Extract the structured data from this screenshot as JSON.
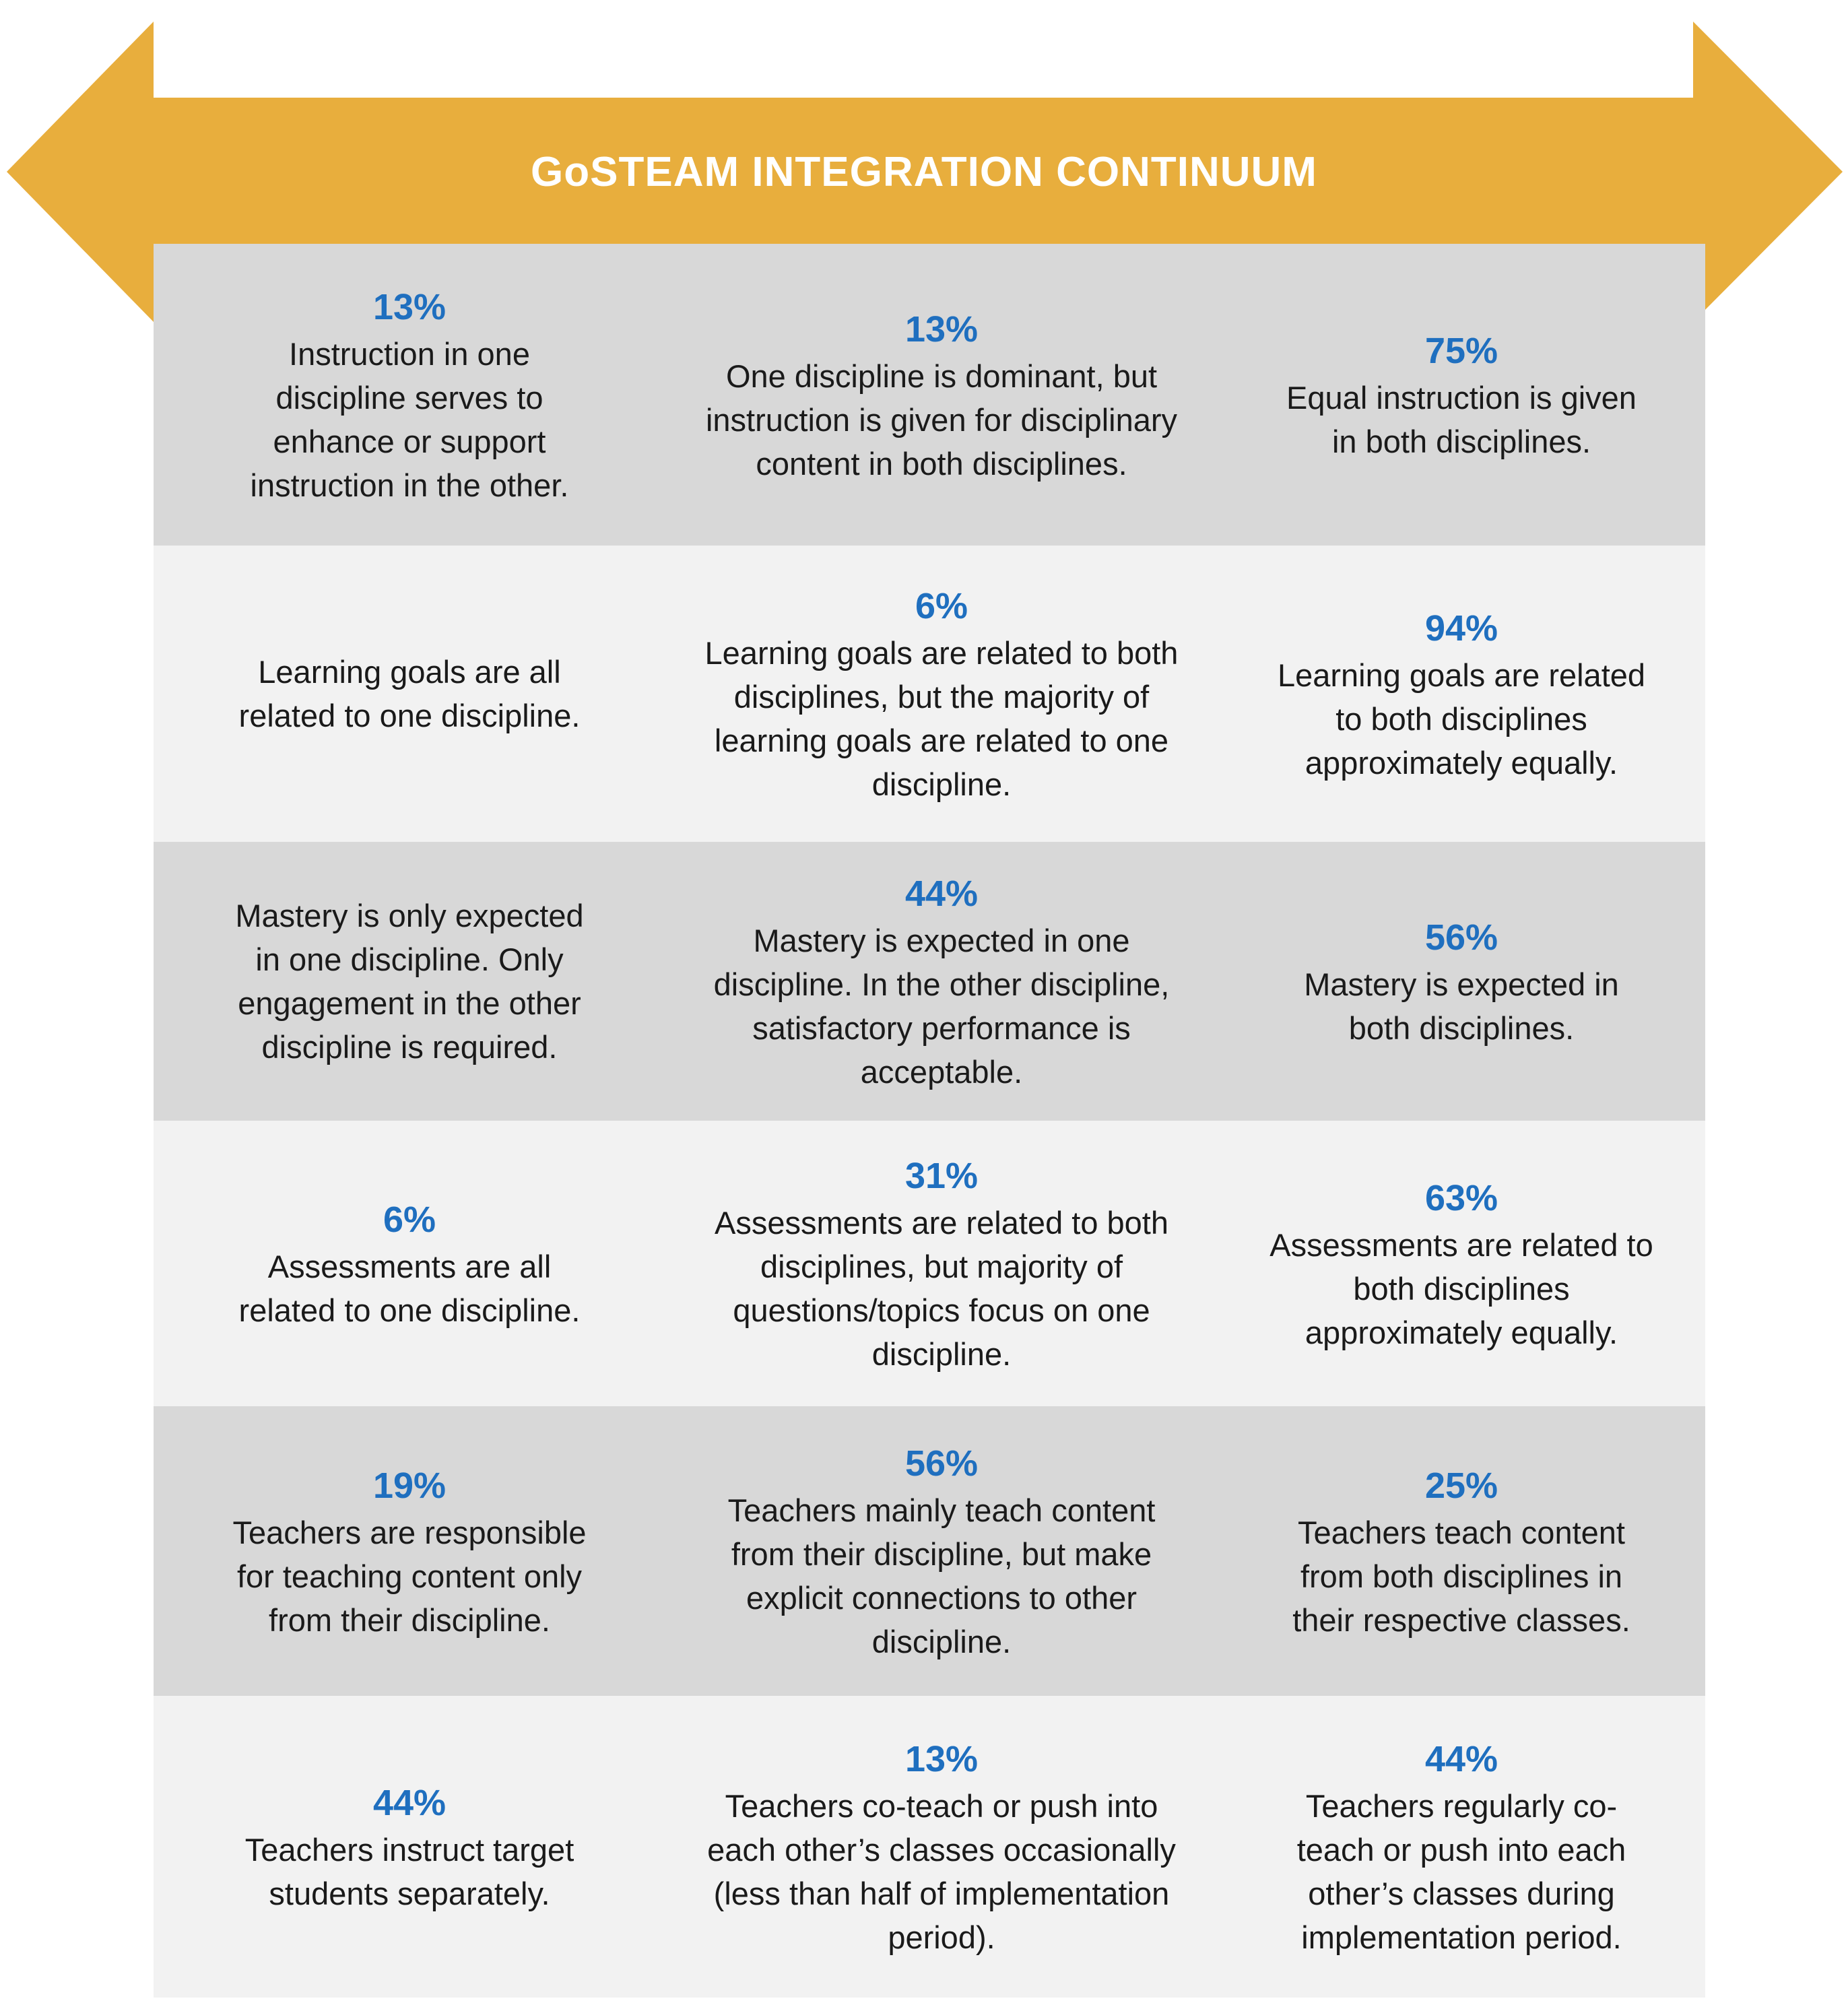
{
  "title": "GoSTEAM INTEGRATION CONTINUUM",
  "colors": {
    "arrow": "#e8ae3d",
    "row_dark": "#d8d8d8",
    "row_light": "#f2f2f2",
    "percent": "#1f6fbf",
    "title_text": "#ffffff"
  },
  "rows": [
    {
      "shade": "dark",
      "cells": [
        {
          "percent": "13%",
          "text": "Instruction in one discipline serves to enhance or support instruction in the other."
        },
        {
          "percent": "13%",
          "text": "One discipline is dominant, but instruction is given for disciplinary content in both disciplines."
        },
        {
          "percent": "75%",
          "text": "Equal instruction is given in both disciplines."
        }
      ]
    },
    {
      "shade": "light",
      "cells": [
        {
          "percent": "",
          "text": "Learning goals are all related to one discipline."
        },
        {
          "percent": "6%",
          "text": "Learning goals are related to both disciplines, but the majority of learning goals are related to one discipline."
        },
        {
          "percent": "94%",
          "text": "Learning goals are related to both disciplines approximately equally."
        }
      ]
    },
    {
      "shade": "dark",
      "cells": [
        {
          "percent": "",
          "text": "Mastery is only expected in one discipline. Only engagement in the other discipline is required."
        },
        {
          "percent": "44%",
          "text": "Mastery is expected in one discipline. In the other discipline, satisfactory performance is acceptable."
        },
        {
          "percent": "56%",
          "text": "Mastery is expected in both disciplines."
        }
      ]
    },
    {
      "shade": "light",
      "cells": [
        {
          "percent": "6%",
          "text": "Assessments are all related to one discipline."
        },
        {
          "percent": "31%",
          "text": "Assessments are related to both disciplines, but majority of questions/topics focus on one discipline."
        },
        {
          "percent": "63%",
          "text": "Assessments are related to both disciplines approximately equally."
        }
      ]
    },
    {
      "shade": "dark",
      "cells": [
        {
          "percent": "19%",
          "text": "Teachers are responsible for teaching content only from their discipline."
        },
        {
          "percent": "56%",
          "text": "Teachers mainly teach content from their discipline, but make explicit connections to other discipline."
        },
        {
          "percent": "25%",
          "text": "Teachers teach content from both disciplines in their respective classes."
        }
      ]
    },
    {
      "shade": "light",
      "cells": [
        {
          "percent": "44%",
          "text": "Teachers instruct target students separately."
        },
        {
          "percent": "13%",
          "text": "Teachers co-teach or push into each other’s classes occasionally (less than half of implementation period)."
        },
        {
          "percent": "44%",
          "text": "Teachers regularly co-teach or push into each other’s classes during implementation period."
        }
      ]
    }
  ]
}
